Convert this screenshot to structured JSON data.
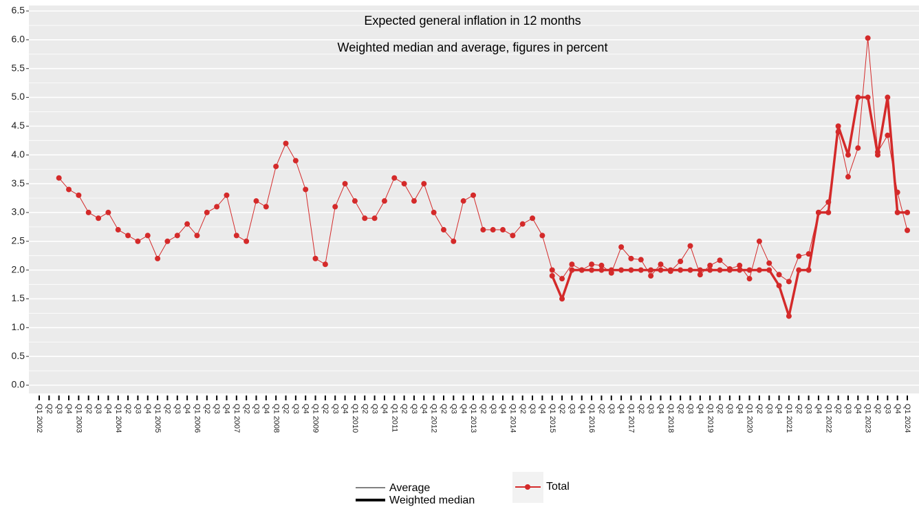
{
  "chart_data": {
    "type": "line",
    "title": "Expected general inflation in 12 months",
    "subtitle": "Weighted median and average, figures in percent",
    "categories": [
      "Q1 2002",
      "Q2",
      "Q3",
      "Q4",
      "Q1 2003",
      "Q2",
      "Q3",
      "Q4",
      "Q1 2004",
      "Q2",
      "Q3",
      "Q4",
      "Q1 2005",
      "Q2",
      "Q3",
      "Q4",
      "Q1 2006",
      "Q2",
      "Q3",
      "Q4",
      "Q1 2007",
      "Q2",
      "Q3",
      "Q4",
      "Q1 2008",
      "Q2",
      "Q3",
      "Q4",
      "Q1 2009",
      "Q2",
      "Q3",
      "Q4",
      "Q1 2010",
      "Q2",
      "Q3",
      "Q4",
      "Q1 2011",
      "Q2",
      "Q3",
      "Q4",
      "Q1 2012",
      "Q2",
      "Q3",
      "Q4",
      "Q1 2013",
      "Q2",
      "Q3",
      "Q4",
      "Q1 2014",
      "Q2",
      "Q3",
      "Q4",
      "Q1 2015",
      "Q2",
      "Q3",
      "Q4",
      "Q1 2016",
      "Q2",
      "Q3",
      "Q4",
      "Q1 2017",
      "Q2",
      "Q3",
      "Q4",
      "Q1 2018",
      "Q2",
      "Q3",
      "Q4",
      "Q1 2019",
      "Q2",
      "Q3",
      "Q4",
      "Q1 2020",
      "Q2",
      "Q3",
      "Q4",
      "Q1 2021",
      "Q2",
      "Q3",
      "Q4",
      "Q1 2022",
      "Q2",
      "Q3",
      "Q4",
      "Q1 2023",
      "Q2",
      "Q3",
      "Q4",
      "Q1 2024"
    ],
    "series": [
      {
        "name": "Average",
        "color": "#d42a2a",
        "linewidth": 1,
        "values": [
          null,
          null,
          3.6,
          3.4,
          3.3,
          3.0,
          2.9,
          3.0,
          2.7,
          2.6,
          2.5,
          2.6,
          2.2,
          2.5,
          2.6,
          2.8,
          2.6,
          3.0,
          3.1,
          3.3,
          2.6,
          2.5,
          3.2,
          3.1,
          3.8,
          4.2,
          3.9,
          3.4,
          2.2,
          2.1,
          3.1,
          3.5,
          3.2,
          2.9,
          2.9,
          3.2,
          3.6,
          3.5,
          3.2,
          3.5,
          3.0,
          2.7,
          2.5,
          3.2,
          3.3,
          2.7,
          2.7,
          2.7,
          2.6,
          2.8,
          2.9,
          2.6,
          2.0,
          1.85,
          2.1,
          2.0,
          2.1,
          2.08,
          1.95,
          2.4,
          2.2,
          2.18,
          1.9,
          2.1,
          1.98,
          2.15,
          2.42,
          1.92,
          2.08,
          2.17,
          2.02,
          2.08,
          1.85,
          2.5,
          2.12,
          1.92,
          1.8,
          2.24,
          2.28,
          3.0,
          3.18,
          4.4,
          3.62,
          4.12,
          6.03,
          4.05,
          4.34,
          3.35,
          2.69
        ]
      },
      {
        "name": "Weighted median",
        "color": "#d42a2a",
        "linewidth": 3.5,
        "values": [
          null,
          null,
          null,
          null,
          null,
          null,
          null,
          null,
          null,
          null,
          null,
          null,
          null,
          null,
          null,
          null,
          null,
          null,
          null,
          null,
          null,
          null,
          null,
          null,
          null,
          null,
          null,
          null,
          null,
          null,
          null,
          null,
          null,
          null,
          null,
          null,
          null,
          null,
          null,
          null,
          null,
          null,
          null,
          null,
          null,
          null,
          null,
          null,
          null,
          null,
          null,
          null,
          1.9,
          1.5,
          2.0,
          2.0,
          2.0,
          2.0,
          2.0,
          2.0,
          2.0,
          2.0,
          2.0,
          2.0,
          2.0,
          2.0,
          2.0,
          2.0,
          2.0,
          2.0,
          2.0,
          2.0,
          2.0,
          2.0,
          2.0,
          1.73,
          1.2,
          2.0,
          2.0,
          3.0,
          3.0,
          4.5,
          4.0,
          5.0,
          5.0,
          4.0,
          5.0,
          3.0,
          3.0
        ]
      }
    ],
    "color_legend": {
      "label": "Total",
      "color": "#d42a2a"
    },
    "ylim": [
      0,
      6.5
    ],
    "yticks": [
      {
        "value": 0,
        "label": "0.0"
      },
      {
        "value": 0.5,
        "label": "0.5"
      },
      {
        "value": 1,
        "label": "1.0"
      },
      {
        "value": 1.5,
        "label": "1.5"
      },
      {
        "value": 2,
        "label": "2.0"
      },
      {
        "value": 2.5,
        "label": "2.5"
      },
      {
        "value": 3,
        "label": "3.0"
      },
      {
        "value": 3.5,
        "label": "3.5"
      },
      {
        "value": 4,
        "label": "4.0"
      },
      {
        "value": 4.5,
        "label": "4.5"
      },
      {
        "value": 5,
        "label": "5.0"
      },
      {
        "value": 5.5,
        "label": "5.5"
      },
      {
        "value": 6,
        "label": "6.0"
      },
      {
        "value": 6.5,
        "label": "6.5"
      }
    ],
    "grid": true
  }
}
